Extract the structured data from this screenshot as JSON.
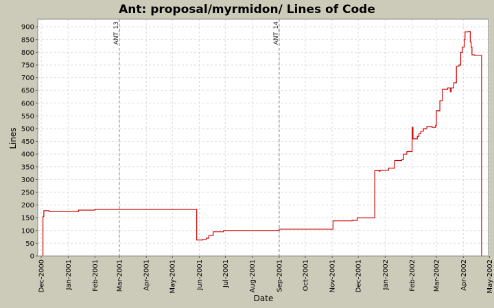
{
  "colors": {
    "background": "#cccbb9",
    "plot_background": "#ffffff",
    "grid": "#d9d9d9",
    "series": "#cc0000",
    "marker_line": "#808080"
  },
  "chart_data": {
    "type": "line",
    "title": "Ant: proposal/myrmidon/ Lines of Code",
    "xlabel": "Date",
    "ylabel": "Lines",
    "x_axis": "date",
    "xlim": [
      "2000-11-27",
      "2002-04-30"
    ],
    "ylim": [
      0,
      930
    ],
    "grid": true,
    "legend": "none",
    "x_tick_labels": [
      "Dec-2000",
      "Jan-2001",
      "Feb-2001",
      "Mar-2001",
      "Apr-2001",
      "May-2001",
      "Jun-2001",
      "Jul-2001",
      "Aug-2001",
      "Sep-2001",
      "Oct-2001",
      "Nov-2001",
      "Dec-2001",
      "Jan-2002",
      "Feb-2002",
      "Mar-2002",
      "Apr-2002",
      "May-2002"
    ],
    "x_tick_dates": [
      "2000-12-01",
      "2001-01-01",
      "2001-02-01",
      "2001-03-01",
      "2001-04-01",
      "2001-05-01",
      "2001-06-01",
      "2001-07-01",
      "2001-08-01",
      "2001-09-01",
      "2001-10-01",
      "2001-11-01",
      "2001-12-01",
      "2002-01-01",
      "2002-02-01",
      "2002-03-01",
      "2002-04-01",
      "2002-05-01"
    ],
    "y_ticks": [
      0,
      50,
      100,
      150,
      200,
      250,
      300,
      350,
      400,
      450,
      500,
      550,
      600,
      650,
      700,
      750,
      800,
      850,
      900
    ],
    "markers": [
      {
        "label": "ANT_13",
        "date": "2001-03-01"
      },
      {
        "label": "ANT_14",
        "date": "2001-09-01"
      }
    ],
    "series": [
      {
        "points": [
          [
            "2000-12-03",
            0
          ],
          [
            "2000-12-03",
            155
          ],
          [
            "2000-12-04",
            178
          ],
          [
            "2000-12-10",
            175
          ],
          [
            "2001-01-13",
            180
          ],
          [
            "2001-02-01",
            183
          ],
          [
            "2001-05-29",
            183
          ],
          [
            "2001-05-29",
            63
          ],
          [
            "2001-06-05",
            65
          ],
          [
            "2001-06-09",
            70
          ],
          [
            "2001-06-12",
            80
          ],
          [
            "2001-06-17",
            95
          ],
          [
            "2001-06-29",
            100
          ],
          [
            "2001-08-30",
            100
          ],
          [
            "2001-09-01",
            105
          ],
          [
            "2001-11-01",
            105
          ],
          [
            "2001-11-02",
            138
          ],
          [
            "2001-11-24",
            140
          ],
          [
            "2001-11-30",
            150
          ],
          [
            "2001-12-19",
            150
          ],
          [
            "2001-12-20",
            335
          ],
          [
            "2001-12-25",
            333
          ],
          [
            "2001-12-26",
            337
          ],
          [
            "2002-01-05",
            345
          ],
          [
            "2002-01-12",
            375
          ],
          [
            "2002-01-20",
            378
          ],
          [
            "2002-01-22",
            400
          ],
          [
            "2002-01-26",
            410
          ],
          [
            "2002-01-31",
            410
          ],
          [
            "2002-02-01",
            505
          ],
          [
            "2002-02-02",
            460
          ],
          [
            "2002-02-07",
            470
          ],
          [
            "2002-02-09",
            480
          ],
          [
            "2002-02-11",
            490
          ],
          [
            "2002-02-14",
            500
          ],
          [
            "2002-02-18",
            508
          ],
          [
            "2002-02-24",
            505
          ],
          [
            "2002-02-28",
            512
          ],
          [
            "2002-03-01",
            570
          ],
          [
            "2002-03-05",
            610
          ],
          [
            "2002-03-08",
            655
          ],
          [
            "2002-03-14",
            660
          ],
          [
            "2002-03-17",
            645
          ],
          [
            "2002-03-18",
            660
          ],
          [
            "2002-03-21",
            680
          ],
          [
            "2002-03-24",
            745
          ],
          [
            "2002-03-27",
            750
          ],
          [
            "2002-03-29",
            800
          ],
          [
            "2002-03-31",
            820
          ],
          [
            "2002-04-02",
            850
          ],
          [
            "2002-04-03",
            880
          ],
          [
            "2002-04-07",
            882
          ],
          [
            "2002-04-09",
            840
          ],
          [
            "2002-04-10",
            820
          ],
          [
            "2002-04-11",
            790
          ],
          [
            "2002-04-14",
            788
          ],
          [
            "2002-04-22",
            787
          ],
          [
            "2002-04-22",
            0
          ]
        ]
      }
    ]
  }
}
